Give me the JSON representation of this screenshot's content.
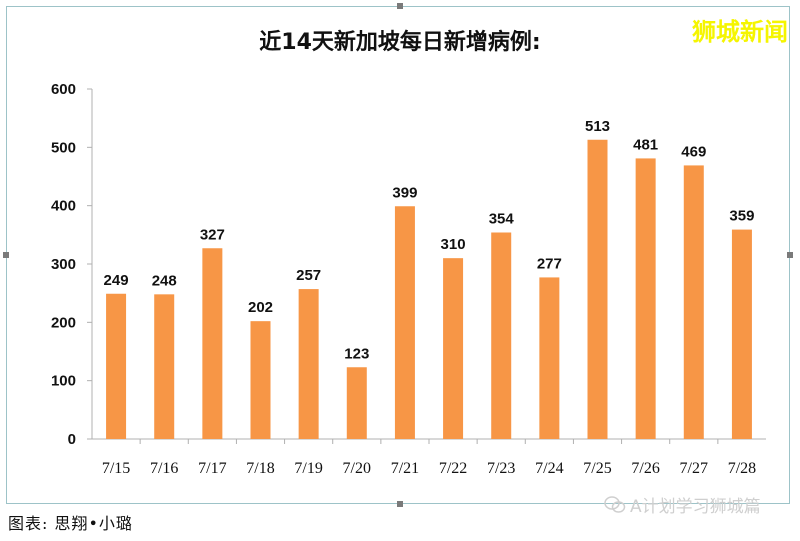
{
  "header": {
    "title": "近14天新加坡每日新增病例:",
    "brand": "狮城新闻"
  },
  "footer": {
    "credit": "图表: 思翔•小璐",
    "watermark": "A计划学习狮城篇"
  },
  "chart_data": {
    "type": "bar",
    "title": "近14天新加坡每日新增病例:",
    "xlabel": "",
    "ylabel": "",
    "categories": [
      "7/15",
      "7/16",
      "7/17",
      "7/18",
      "7/19",
      "7/20",
      "7/21",
      "7/22",
      "7/23",
      "7/24",
      "7/25",
      "7/26",
      "7/27",
      "7/28"
    ],
    "values": [
      249,
      248,
      327,
      202,
      257,
      123,
      399,
      310,
      354,
      277,
      513,
      481,
      469,
      359
    ],
    "ylim": [
      0,
      600
    ],
    "yticks": [
      0,
      100,
      200,
      300,
      400,
      500,
      600
    ],
    "grid": false,
    "legend": "none",
    "bar_color": "#f79646",
    "axis_color": "#b0b0b0"
  }
}
